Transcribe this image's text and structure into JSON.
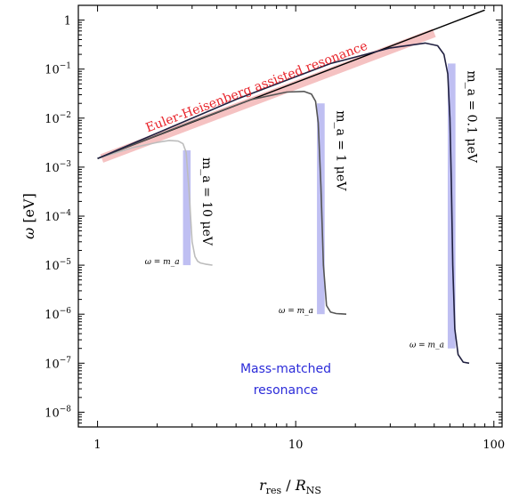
{
  "chart_data": {
    "type": "line",
    "xlabel": "r_res / R_NS",
    "ylabel": "ω [eV]",
    "x_scale": "log",
    "y_scale": "log",
    "xlim": [
      0.8,
      110
    ],
    "ylim": [
      5e-09,
      2
    ],
    "x_ticks": [
      1,
      10,
      100
    ],
    "x_tick_labels": [
      "1",
      "10",
      "100"
    ],
    "y_ticks": [
      1e-08,
      1e-07,
      1e-06,
      1e-05,
      0.0001,
      0.001,
      0.01,
      0.1,
      1
    ],
    "y_tick_labels": [
      {
        "base": "10",
        "exp": "−8"
      },
      {
        "base": "10",
        "exp": "−7"
      },
      {
        "base": "10",
        "exp": "−6"
      },
      {
        "base": "10",
        "exp": "−5"
      },
      {
        "base": "10",
        "exp": "−4"
      },
      {
        "base": "10",
        "exp": "−3"
      },
      {
        "base": "10",
        "exp": "−2"
      },
      {
        "base": "10",
        "exp": "−1"
      },
      {
        "base": "1",
        "exp": ""
      }
    ],
    "grid": false,
    "reference_line": {
      "x": [
        1,
        90
      ],
      "y": [
        0.0015,
        1.6
      ],
      "color": "#000000"
    },
    "band": {
      "x": [
        1.05,
        50
      ],
      "y": [
        0.0015,
        0.55
      ],
      "color": "#f4b8b8",
      "label": "Euler-Heisenberg assisted resonance",
      "label_color": "#e8232a"
    },
    "series": [
      {
        "x": [
          1.0,
          1.5,
          2.0,
          2.3,
          2.55,
          2.7,
          2.8,
          2.9,
          3.0,
          3.1,
          3.2,
          3.3,
          3.5,
          3.8
        ],
        "y": [
          0.0015,
          0.0025,
          0.0032,
          0.0035,
          0.0034,
          0.003,
          0.002,
          0.0003,
          3e-05,
          1.5e-05,
          1.2e-05,
          1.11e-05,
          1.05e-05,
          1e-05
        ],
        "color": "#bdbdbd",
        "mass_label": "m_a = 10 μeV",
        "floor_label": "ω = m_a",
        "box": {
          "x": [
            2.7,
            2.95
          ],
          "y": [
            1e-05,
            0.0022
          ]
        }
      },
      {
        "x": [
          1.0,
          3.0,
          6.0,
          9.0,
          11.0,
          12.0,
          12.6,
          13.0,
          13.4,
          13.8,
          14.3,
          15.0,
          16.0,
          18.0
        ],
        "y": [
          0.0015,
          0.0085,
          0.024,
          0.034,
          0.035,
          0.031,
          0.022,
          0.008,
          0.0004,
          1e-05,
          1.5e-06,
          1.1e-06,
          1.03e-06,
          1e-06
        ],
        "color": "#555555",
        "mass_label": "m_a = 1 μeV",
        "floor_label": "ω = m_a",
        "box": {
          "x": [
            12.8,
            14.0
          ],
          "y": [
            1e-06,
            0.02
          ]
        }
      },
      {
        "x": [
          1.0,
          5.0,
          15.0,
          30.0,
          45.0,
          52.0,
          56.0,
          58.5,
          60.0,
          61.0,
          62.0,
          63.5,
          66.0,
          70.0,
          75.0
        ],
        "y": [
          0.0015,
          0.024,
          0.13,
          0.27,
          0.34,
          0.3,
          0.2,
          0.08,
          0.01,
          0.0005,
          1e-05,
          5e-07,
          1.5e-07,
          1.05e-07,
          1e-07
        ],
        "color": "#202040",
        "mass_label": "m_a = 0.1 μeV",
        "floor_label": "ω = m_a",
        "box": {
          "x": [
            58.5,
            64.0
          ],
          "y": [
            2e-07,
            0.13
          ]
        }
      }
    ],
    "annotations": [
      {
        "text": "Mass-matched",
        "color": "#2b2bd9"
      },
      {
        "text": "resonance",
        "color": "#2b2bd9"
      }
    ]
  }
}
